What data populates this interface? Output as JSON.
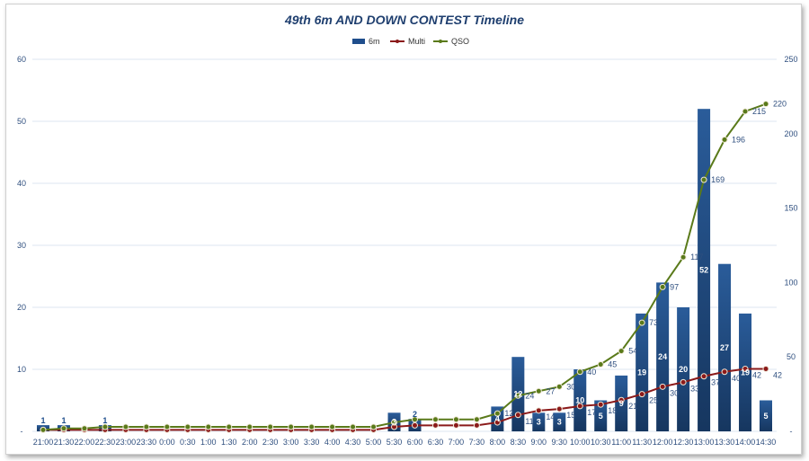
{
  "chart_data": {
    "type": "bar+line",
    "title": "49th 6m AND DOWN CONTEST Timeline",
    "categories": [
      "21:00",
      "21:30",
      "22:00",
      "22:30",
      "23:00",
      "23:30",
      "0:00",
      "0:30",
      "1:00",
      "1:30",
      "2:00",
      "2:30",
      "3:00",
      "3:30",
      "4:00",
      "4:30",
      "5:00",
      "5:30",
      "6:00",
      "6:30",
      "7:00",
      "7:30",
      "8:00",
      "8:30",
      "9:00",
      "9:30",
      "10:00",
      "10:30",
      "11:00",
      "11:30",
      "12:00",
      "12:30",
      "13:00",
      "13:30",
      "14:00",
      "14:30"
    ],
    "series": [
      {
        "name": "6m",
        "type": "bar",
        "axis": "left",
        "color": "#1f4e8c",
        "values": [
          1,
          1,
          0,
          1,
          0,
          0,
          0,
          0,
          0,
          0,
          0,
          0,
          0,
          0,
          0,
          0,
          0,
          3,
          2,
          0,
          0,
          0,
          4,
          12,
          3,
          3,
          10,
          5,
          9,
          19,
          24,
          20,
          52,
          27,
          19,
          5
        ]
      },
      {
        "name": "Multi",
        "type": "line",
        "axis": "right",
        "color": "#8b1a1a",
        "values": [
          1,
          1,
          1,
          1,
          1,
          1,
          1,
          1,
          1,
          1,
          1,
          1,
          1,
          1,
          1,
          1,
          1,
          3,
          4,
          4,
          4,
          4,
          6,
          11,
          14,
          15,
          17,
          18,
          21,
          25,
          30,
          33,
          37,
          40,
          42,
          42
        ]
      },
      {
        "name": "QSO",
        "type": "line",
        "axis": "right",
        "color": "#5a7a1a",
        "values": [
          1,
          2,
          2,
          3,
          3,
          3,
          3,
          3,
          3,
          3,
          3,
          3,
          3,
          3,
          3,
          3,
          3,
          6,
          8,
          8,
          8,
          8,
          12,
          24,
          27,
          30,
          40,
          45,
          54,
          73,
          97,
          117,
          169,
          196,
          215,
          220
        ]
      }
    ],
    "yleft": {
      "lim": [
        0,
        60
      ],
      "ticks": [
        "-",
        "10",
        "20",
        "30",
        "40",
        "50",
        "60"
      ]
    },
    "yright": {
      "lim": [
        0,
        250
      ],
      "ticks": [
        "-",
        "50",
        "100",
        "150",
        "200",
        "250"
      ]
    },
    "grid": true,
    "legend": "top-center"
  }
}
